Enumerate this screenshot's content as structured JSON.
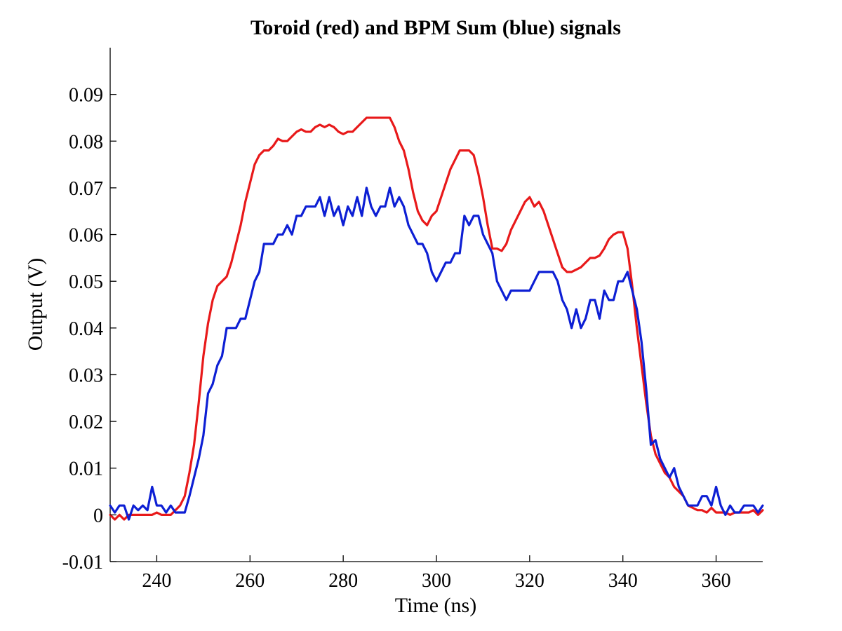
{
  "chart_data": {
    "type": "line",
    "title": "Toroid (red) and BPM Sum (blue) signals",
    "xlabel": "Time (ns)",
    "ylabel": "Output (V)",
    "xlim": [
      230,
      370
    ],
    "ylim": [
      -0.01,
      0.1
    ],
    "xticks": [
      240,
      260,
      280,
      300,
      320,
      340,
      360
    ],
    "xtick_labels": [
      "240",
      "260",
      "280",
      "300",
      "320",
      "340",
      "360"
    ],
    "yticks": [
      -0.01,
      0,
      0.01,
      0.02,
      0.03,
      0.04,
      0.05,
      0.06,
      0.07,
      0.08,
      0.09
    ],
    "ytick_labels": [
      "-0.01",
      "0",
      "0.01",
      "0.02",
      "0.03",
      "0.04",
      "0.05",
      "0.06",
      "0.07",
      "0.08",
      "0.09"
    ],
    "grid": false,
    "legend": false,
    "series": [
      {
        "color": "#e8191a",
        "x": [
          230,
          231,
          232,
          233,
          234,
          235,
          236,
          237,
          238,
          239,
          240,
          241,
          242,
          243,
          244,
          245,
          246,
          247,
          248,
          249,
          250,
          251,
          252,
          253,
          254,
          255,
          256,
          257,
          258,
          259,
          260,
          261,
          262,
          263,
          264,
          265,
          266,
          267,
          268,
          269,
          270,
          271,
          272,
          273,
          274,
          275,
          276,
          277,
          278,
          279,
          280,
          281,
          282,
          283,
          284,
          285,
          286,
          287,
          288,
          289,
          290,
          291,
          292,
          293,
          294,
          295,
          296,
          297,
          298,
          299,
          300,
          301,
          302,
          303,
          304,
          305,
          306,
          307,
          308,
          309,
          310,
          311,
          312,
          313,
          314,
          315,
          316,
          317,
          318,
          319,
          320,
          321,
          322,
          323,
          324,
          325,
          326,
          327,
          328,
          329,
          330,
          331,
          332,
          333,
          334,
          335,
          336,
          337,
          338,
          339,
          340,
          341,
          342,
          343,
          344,
          345,
          346,
          347,
          348,
          349,
          350,
          351,
          352,
          353,
          354,
          355,
          356,
          357,
          358,
          359,
          360,
          361,
          362,
          363,
          364,
          365,
          366,
          367,
          368,
          369,
          370
        ],
        "y": [
          0.0,
          -0.001,
          0.0,
          -0.001,
          0.0,
          0.0,
          0.0,
          0.0,
          0.0,
          0.0,
          0.0005,
          0.0,
          0.0,
          0.0,
          0.001,
          0.002,
          0.004,
          0.009,
          0.015,
          0.024,
          0.034,
          0.041,
          0.046,
          0.049,
          0.05,
          0.051,
          0.054,
          0.058,
          0.062,
          0.067,
          0.071,
          0.075,
          0.077,
          0.078,
          0.078,
          0.079,
          0.0805,
          0.08,
          0.08,
          0.081,
          0.082,
          0.0825,
          0.082,
          0.082,
          0.083,
          0.0835,
          0.083,
          0.0835,
          0.083,
          0.082,
          0.0815,
          0.082,
          0.082,
          0.083,
          0.084,
          0.085,
          0.085,
          0.085,
          0.085,
          0.085,
          0.085,
          0.083,
          0.08,
          0.078,
          0.074,
          0.069,
          0.065,
          0.063,
          0.062,
          0.064,
          0.065,
          0.068,
          0.071,
          0.074,
          0.076,
          0.078,
          0.078,
          0.078,
          0.077,
          0.073,
          0.068,
          0.062,
          0.057,
          0.057,
          0.0565,
          0.058,
          0.061,
          0.063,
          0.065,
          0.067,
          0.068,
          0.066,
          0.067,
          0.065,
          0.062,
          0.059,
          0.056,
          0.053,
          0.052,
          0.052,
          0.0525,
          0.053,
          0.054,
          0.055,
          0.055,
          0.0555,
          0.057,
          0.059,
          0.06,
          0.0605,
          0.0605,
          0.057,
          0.049,
          0.04,
          0.032,
          0.024,
          0.017,
          0.013,
          0.011,
          0.009,
          0.008,
          0.006,
          0.005,
          0.004,
          0.002,
          0.0015,
          0.001,
          0.001,
          0.0005,
          0.0015,
          0.0005,
          0.0005,
          0.0005,
          0.0,
          0.0005,
          0.0005,
          0.0005,
          0.0005,
          0.001,
          0.0,
          0.001
        ]
      },
      {
        "color": "#0d1fd4",
        "x": [
          230,
          231,
          232,
          233,
          234,
          235,
          236,
          237,
          238,
          239,
          240,
          241,
          242,
          243,
          244,
          245,
          246,
          247,
          248,
          249,
          250,
          251,
          252,
          253,
          254,
          255,
          256,
          257,
          258,
          259,
          260,
          261,
          262,
          263,
          264,
          265,
          266,
          267,
          268,
          269,
          270,
          271,
          272,
          273,
          274,
          275,
          276,
          277,
          278,
          279,
          280,
          281,
          282,
          283,
          284,
          285,
          286,
          287,
          288,
          289,
          290,
          291,
          292,
          293,
          294,
          295,
          296,
          297,
          298,
          299,
          300,
          301,
          302,
          303,
          304,
          305,
          306,
          307,
          308,
          309,
          310,
          311,
          312,
          313,
          314,
          315,
          316,
          317,
          318,
          319,
          320,
          321,
          322,
          323,
          324,
          325,
          326,
          327,
          328,
          329,
          330,
          331,
          332,
          333,
          334,
          335,
          336,
          337,
          338,
          339,
          340,
          341,
          342,
          343,
          344,
          345,
          346,
          347,
          348,
          349,
          350,
          351,
          352,
          353,
          354,
          355,
          356,
          357,
          358,
          359,
          360,
          361,
          362,
          363,
          364,
          365,
          366,
          367,
          368,
          369,
          370
        ],
        "y": [
          0.002,
          0.0005,
          0.002,
          0.002,
          -0.001,
          0.002,
          0.001,
          0.002,
          0.001,
          0.006,
          0.002,
          0.002,
          0.0005,
          0.002,
          0.0005,
          0.0005,
          0.0005,
          0.004,
          0.008,
          0.012,
          0.017,
          0.026,
          0.028,
          0.032,
          0.034,
          0.04,
          0.04,
          0.04,
          0.042,
          0.042,
          0.046,
          0.05,
          0.052,
          0.058,
          0.058,
          0.058,
          0.06,
          0.06,
          0.062,
          0.06,
          0.064,
          0.064,
          0.066,
          0.066,
          0.066,
          0.068,
          0.064,
          0.068,
          0.064,
          0.066,
          0.062,
          0.066,
          0.064,
          0.068,
          0.064,
          0.07,
          0.066,
          0.064,
          0.066,
          0.066,
          0.07,
          0.066,
          0.068,
          0.066,
          0.062,
          0.06,
          0.058,
          0.058,
          0.056,
          0.052,
          0.05,
          0.052,
          0.054,
          0.054,
          0.056,
          0.056,
          0.064,
          0.062,
          0.064,
          0.064,
          0.06,
          0.058,
          0.056,
          0.05,
          0.048,
          0.046,
          0.048,
          0.048,
          0.048,
          0.048,
          0.048,
          0.05,
          0.052,
          0.052,
          0.052,
          0.052,
          0.05,
          0.046,
          0.044,
          0.04,
          0.044,
          0.04,
          0.042,
          0.046,
          0.046,
          0.042,
          0.048,
          0.046,
          0.046,
          0.05,
          0.05,
          0.052,
          0.048,
          0.044,
          0.037,
          0.027,
          0.015,
          0.016,
          0.012,
          0.01,
          0.008,
          0.01,
          0.006,
          0.004,
          0.002,
          0.002,
          0.002,
          0.004,
          0.004,
          0.002,
          0.006,
          0.002,
          0.0,
          0.002,
          0.0005,
          0.0005,
          0.002,
          0.002,
          0.002,
          0.0005,
          0.002
        ]
      }
    ]
  }
}
